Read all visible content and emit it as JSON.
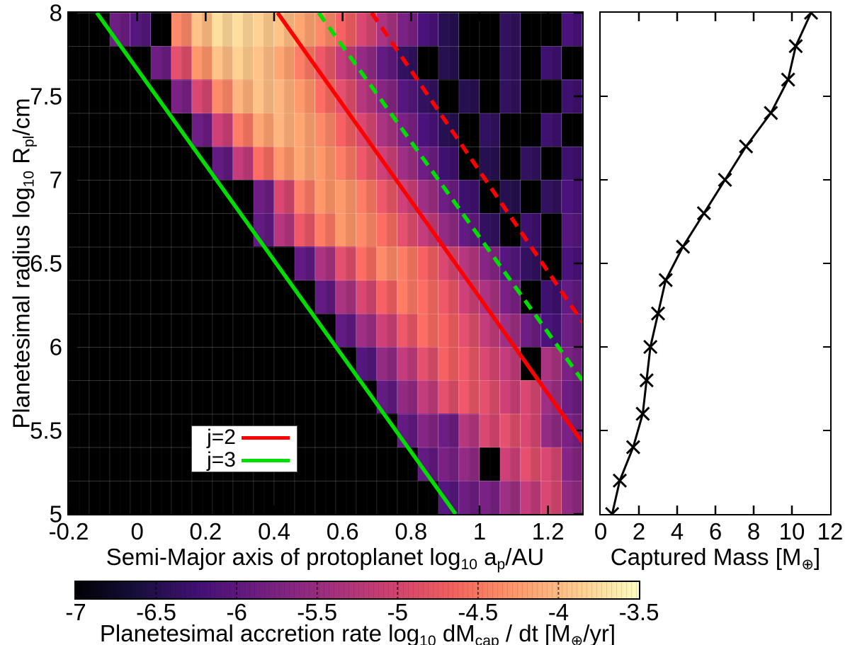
{
  "figure": {
    "background": "#ffffff",
    "heatmap_bg": "#000000",
    "j2_color": "#ff0000",
    "j3_color": "#00dd00",
    "curve_color": "#000000"
  },
  "chart_data": [
    {
      "id": "accretion_heatmap",
      "type": "heatmap",
      "xlabel_parts": [
        {
          "t": "Semi-Major axis of protoplanet log"
        },
        {
          "t": "10",
          "sub": true
        },
        {
          "t": " a"
        },
        {
          "t": "p",
          "sub": true
        },
        {
          "t": "/AU"
        }
      ],
      "ylabel_parts": [
        {
          "t": "Planetesimal radius log"
        },
        {
          "t": "10",
          "sub": true
        },
        {
          "t": " R"
        },
        {
          "t": "pl",
          "sub": true
        },
        {
          "t": "/cm"
        }
      ],
      "x_range": [
        -0.2,
        1.3
      ],
      "y_range": [
        5,
        8
      ],
      "x_ticks": [
        {
          "v": -0.2,
          "label": "-0.2"
        },
        {
          "v": 0,
          "label": "0"
        },
        {
          "v": 0.2,
          "label": "0.2"
        },
        {
          "v": 0.4,
          "label": "0.4"
        },
        {
          "v": 0.6,
          "label": "0.6"
        },
        {
          "v": 0.8,
          "label": "0.8"
        },
        {
          "v": 1,
          "label": "1"
        },
        {
          "v": 1.2,
          "label": "1.2"
        }
      ],
      "y_ticks": [
        {
          "v": 8,
          "label": "8"
        },
        {
          "v": 7.5,
          "label": "7.5"
        },
        {
          "v": 7,
          "label": "7"
        },
        {
          "v": 6.5,
          "label": "6.5"
        },
        {
          "v": 6,
          "label": "6"
        },
        {
          "v": 5.5,
          "label": "5.5"
        },
        {
          "v": 5,
          "label": "5"
        }
      ],
      "grid": {
        "x0": -0.2,
        "dx": 0.06,
        "cols": 25,
        "y0": 5.0,
        "dy": 0.2,
        "rows": 15
      },
      "values_note": "log10 dMcap/dt [Mearth/yr]; rows bottom(y=5.0-5.2) to top(y=7.8-8.0); null = no accretion (black)",
      "values": [
        [
          null,
          null,
          null,
          null,
          null,
          null,
          null,
          null,
          null,
          null,
          null,
          null,
          null,
          null,
          null,
          null,
          null,
          null,
          -6.1,
          -5.9,
          -5.8,
          -5.5,
          -5.2,
          -5.0,
          -5.6
        ],
        [
          null,
          null,
          null,
          null,
          null,
          null,
          null,
          null,
          null,
          null,
          null,
          null,
          null,
          null,
          null,
          null,
          null,
          -6.0,
          -5.8,
          -5.6,
          null,
          -5.1,
          -4.9,
          -5.0,
          -5.7
        ],
        [
          null,
          null,
          null,
          null,
          null,
          null,
          null,
          null,
          null,
          null,
          null,
          null,
          null,
          null,
          null,
          null,
          -6.0,
          -5.7,
          -5.9,
          -5.3,
          -5.0,
          -4.9,
          -5.0,
          -5.6,
          -5.8
        ],
        [
          null,
          null,
          null,
          null,
          null,
          null,
          null,
          null,
          null,
          null,
          null,
          null,
          null,
          null,
          null,
          -6.0,
          -5.6,
          -5.2,
          -4.9,
          -4.8,
          -4.9,
          -5.1,
          -5.0,
          -5.5,
          -5.9
        ],
        [
          null,
          null,
          null,
          null,
          null,
          null,
          null,
          null,
          null,
          null,
          null,
          null,
          null,
          null,
          -6.1,
          -5.6,
          -5.2,
          -4.9,
          -4.7,
          -4.8,
          -5.0,
          -5.2,
          null,
          -5.4,
          -5.8
        ],
        [
          null,
          null,
          null,
          null,
          null,
          null,
          null,
          null,
          null,
          null,
          null,
          null,
          null,
          -6.0,
          -5.5,
          -5.1,
          -4.8,
          -4.6,
          -4.7,
          -4.9,
          -5.2,
          -5.5,
          -5.9,
          -6.2,
          -5.9
        ],
        [
          null,
          null,
          null,
          null,
          null,
          null,
          null,
          null,
          null,
          null,
          null,
          null,
          -6.0,
          -5.4,
          -5.0,
          -4.7,
          -4.5,
          -4.6,
          -4.8,
          -5.1,
          -5.4,
          -5.8,
          null,
          -6.3,
          -6.0
        ],
        [
          null,
          null,
          null,
          null,
          null,
          null,
          null,
          null,
          null,
          null,
          null,
          -6.0,
          -5.4,
          -4.9,
          -4.6,
          -4.4,
          -4.5,
          -4.7,
          -5.0,
          -5.3,
          -5.7,
          -6.1,
          -6.4,
          null,
          -6.2
        ],
        [
          null,
          null,
          null,
          null,
          null,
          null,
          null,
          null,
          null,
          -6.0,
          -5.3,
          -4.8,
          -4.5,
          -4.3,
          -4.4,
          -4.6,
          -4.9,
          -5.2,
          -5.6,
          -6.0,
          -6.4,
          null,
          -6.3,
          null,
          -6.1
        ],
        [
          null,
          null,
          null,
          null,
          null,
          null,
          null,
          null,
          null,
          -5.9,
          -5.0,
          -4.5,
          -4.3,
          -4.3,
          -4.5,
          -4.8,
          -5.1,
          -5.5,
          -5.9,
          -6.3,
          null,
          -6.5,
          null,
          -6.4,
          -6.2
        ],
        [
          null,
          null,
          null,
          null,
          null,
          null,
          null,
          -6.0,
          -5.2,
          -4.6,
          -4.3,
          -4.2,
          -4.3,
          -4.5,
          -4.8,
          -5.1,
          -5.5,
          -5.9,
          -6.3,
          null,
          -6.5,
          null,
          -6.4,
          null,
          -6.3
        ],
        [
          null,
          null,
          null,
          null,
          null,
          null,
          -5.9,
          -5.1,
          -4.5,
          -4.2,
          -4.1,
          -4.2,
          -4.4,
          -4.7,
          -5.0,
          -5.4,
          -5.8,
          -6.2,
          -6.5,
          null,
          -6.4,
          null,
          null,
          -6.3,
          null
        ],
        [
          null,
          null,
          null,
          null,
          null,
          -5.8,
          -5.0,
          -4.4,
          -4.1,
          -4.0,
          -4.1,
          -4.3,
          -4.6,
          -4.9,
          -5.3,
          -5.7,
          -6.1,
          -6.4,
          null,
          -6.5,
          null,
          -6.4,
          null,
          null,
          -6.3
        ],
        [
          null,
          null,
          null,
          null,
          -5.9,
          -4.9,
          -4.3,
          -4.0,
          -3.9,
          -4.0,
          -4.2,
          -4.5,
          -4.8,
          -5.2,
          -5.6,
          -6.0,
          -6.4,
          null,
          -6.5,
          null,
          null,
          -6.4,
          null,
          -6.3,
          null
        ],
        [
          null,
          null,
          -5.9,
          -6.1,
          null,
          -4.4,
          -4.0,
          -3.8,
          -3.8,
          -3.9,
          -4.0,
          -4.2,
          -4.4,
          -4.7,
          -5.0,
          -5.4,
          -5.8,
          -6.2,
          -6.5,
          null,
          null,
          -6.4,
          null,
          null,
          -6.2
        ]
      ],
      "colormap": {
        "min": -7,
        "max": -3.5,
        "stops": [
          "#000004",
          "#180f3e",
          "#451077",
          "#721f81",
          "#9f2f7f",
          "#cd4071",
          "#f1605d",
          "#fd9668",
          "#feca8d",
          "#fcfdbf"
        ]
      },
      "lines": [
        {
          "name": "j2-solid",
          "color": "#ff0000",
          "dash": false,
          "points": [
            [
              0.41,
              8
            ],
            [
              1.3,
              5.43
            ]
          ]
        },
        {
          "name": "j3-solid",
          "color": "#00dd00",
          "dash": false,
          "points": [
            [
              -0.118,
              8
            ],
            [
              0.93,
              5.0
            ]
          ]
        },
        {
          "name": "j3-dashed",
          "color": "#00dd00",
          "dash": true,
          "points": [
            [
              0.53,
              8
            ],
            [
              1.3,
              5.8
            ]
          ]
        },
        {
          "name": "j2-dashed",
          "color": "#ff0000",
          "dash": true,
          "points": [
            [
              0.685,
              8
            ],
            [
              1.3,
              6.15
            ]
          ]
        }
      ],
      "legend": {
        "items": [
          {
            "label": "j=2",
            "color": "#ff0000"
          },
          {
            "label": "j=3",
            "color": "#00dd00"
          }
        ]
      }
    },
    {
      "id": "captured_mass",
      "type": "line",
      "xlabel_parts": [
        {
          "t": "Captured Mass [M"
        },
        {
          "t": "⊕",
          "sub": true
        },
        {
          "t": "]"
        }
      ],
      "x_range": [
        0,
        12
      ],
      "x_ticks": [
        {
          "v": 0,
          "label": "0"
        },
        {
          "v": 2,
          "label": "2"
        },
        {
          "v": 4,
          "label": "4"
        },
        {
          "v": 6,
          "label": "6"
        },
        {
          "v": 8,
          "label": "8"
        },
        {
          "v": 10,
          "label": "10"
        },
        {
          "v": 12,
          "label": "12"
        }
      ],
      "y_range": [
        5,
        8
      ],
      "y_ticks": [
        5.5,
        6,
        6.5,
        7,
        7.5
      ],
      "series": [
        {
          "name": "captured-mass",
          "marker": "x",
          "color": "#000000",
          "y": [
            5.0,
            5.2,
            5.4,
            5.6,
            5.8,
            6.0,
            6.2,
            6.4,
            6.6,
            6.8,
            7.0,
            7.2,
            7.4,
            7.6,
            7.8,
            8.0
          ],
          "x": [
            0.6,
            1.0,
            1.7,
            2.2,
            2.4,
            2.6,
            3.0,
            3.4,
            4.3,
            5.4,
            6.5,
            7.6,
            8.9,
            9.8,
            10.2,
            11.0
          ]
        }
      ]
    },
    {
      "id": "colorbar",
      "type": "colorbar",
      "label_parts": [
        {
          "t": "Planetesimal accretion rate log"
        },
        {
          "t": "10",
          "sub": true
        },
        {
          "t": " dM"
        },
        {
          "t": "cap",
          "sub": true
        },
        {
          "t": " / dt [M"
        },
        {
          "t": "⊕",
          "sub": true
        },
        {
          "t": "/yr]"
        }
      ],
      "range": [
        -7,
        -3.5
      ],
      "ticks": [
        {
          "v": -7,
          "label": "-7"
        },
        {
          "v": -6.5,
          "label": "-6.5"
        },
        {
          "v": -6,
          "label": "-6"
        },
        {
          "v": -5.5,
          "label": "-5.5"
        },
        {
          "v": -5,
          "label": "-5"
        },
        {
          "v": -4.5,
          "label": "-4.5"
        },
        {
          "v": -4,
          "label": "-4"
        },
        {
          "v": -3.5,
          "label": "-3.5"
        }
      ]
    }
  ]
}
